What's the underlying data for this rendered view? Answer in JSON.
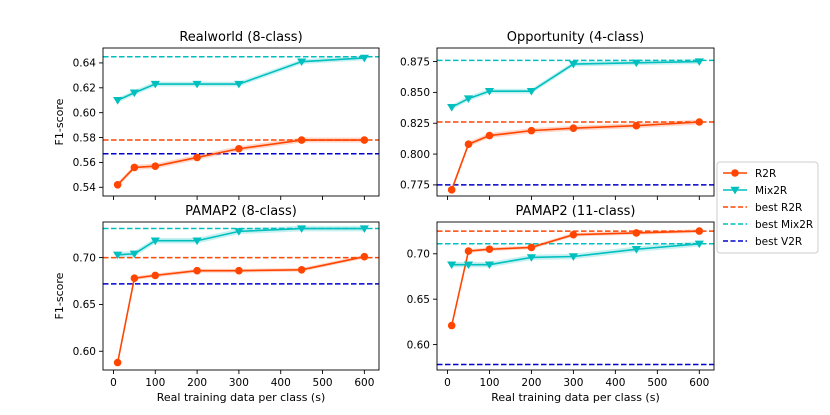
{
  "figure": {
    "xlabel": "Real training data per class (s)",
    "ylabel": "F1-score"
  },
  "colors": {
    "r2r": "#ff4500",
    "mix2r": "#00bfbf",
    "best_r2r": "#ff4500",
    "best_mix2r": "#00bfbf",
    "best_v2r": "#0000cd"
  },
  "legend": {
    "items": [
      {
        "key": "r2r",
        "label": "R2R",
        "style": "line-circle"
      },
      {
        "key": "mix2r",
        "label": "Mix2R",
        "style": "line-triangle"
      },
      {
        "key": "best_r2r",
        "label": "best R2R",
        "style": "dashed"
      },
      {
        "key": "best_mix2r",
        "label": "best Mix2R",
        "style": "dashed"
      },
      {
        "key": "best_v2r",
        "label": "best V2R",
        "style": "dashed"
      }
    ]
  },
  "chart_data": [
    {
      "type": "line",
      "title": "Realworld (8-class)",
      "x": [
        10,
        50,
        100,
        200,
        300,
        450,
        600
      ],
      "xlim": [
        -25,
        635
      ],
      "xticks": [
        0,
        100,
        200,
        300,
        400,
        500,
        600
      ],
      "show_xticklabels": false,
      "ylim": [
        0.533,
        0.652
      ],
      "yticks": [
        0.54,
        0.56,
        0.58,
        0.6,
        0.62,
        0.64
      ],
      "yticklabels": [
        "0.54",
        "0.56",
        "0.58",
        "0.60",
        "0.62",
        "0.64"
      ],
      "series": [
        {
          "name": "R2R",
          "key": "r2r",
          "values": [
            0.542,
            0.556,
            0.557,
            0.564,
            0.571,
            0.578,
            0.578
          ],
          "band": 0.002
        },
        {
          "name": "Mix2R",
          "key": "mix2r",
          "values": [
            0.61,
            0.616,
            0.623,
            0.623,
            0.623,
            0.641,
            0.644
          ],
          "band": 0.002
        }
      ],
      "baselines": [
        {
          "name": "best R2R",
          "key": "best_r2r",
          "value": 0.578
        },
        {
          "name": "best Mix2R",
          "key": "best_mix2r",
          "value": 0.645
        },
        {
          "name": "best V2R",
          "key": "best_v2r",
          "value": 0.567
        }
      ]
    },
    {
      "type": "line",
      "title": "Opportunity (4-class)",
      "x": [
        10,
        50,
        100,
        200,
        300,
        450,
        600
      ],
      "xlim": [
        -25,
        635
      ],
      "xticks": [
        0,
        100,
        200,
        300,
        400,
        500,
        600
      ],
      "show_xticklabels": false,
      "ylim": [
        0.766,
        0.886
      ],
      "yticks": [
        0.775,
        0.8,
        0.825,
        0.85,
        0.875
      ],
      "yticklabels": [
        "0.775",
        "0.800",
        "0.825",
        "0.850",
        "0.875"
      ],
      "series": [
        {
          "name": "R2R",
          "key": "r2r",
          "values": [
            0.771,
            0.808,
            0.815,
            0.819,
            0.821,
            0.823,
            0.826
          ],
          "band": 0.002
        },
        {
          "name": "Mix2R",
          "key": "mix2r",
          "values": [
            0.838,
            0.845,
            0.851,
            0.851,
            0.873,
            0.874,
            0.875
          ],
          "band": 0.002
        }
      ],
      "baselines": [
        {
          "name": "best R2R",
          "key": "best_r2r",
          "value": 0.826
        },
        {
          "name": "best Mix2R",
          "key": "best_mix2r",
          "value": 0.876
        },
        {
          "name": "best V2R",
          "key": "best_v2r",
          "value": 0.775
        }
      ]
    },
    {
      "type": "line",
      "title": "PAMAP2 (8-class)",
      "x": [
        10,
        50,
        100,
        200,
        300,
        450,
        600
      ],
      "xlim": [
        -25,
        635
      ],
      "xticks": [
        0,
        100,
        200,
        300,
        400,
        500,
        600
      ],
      "show_xticklabels": true,
      "ylim": [
        0.58,
        0.738
      ],
      "yticks": [
        0.6,
        0.65,
        0.7
      ],
      "yticklabels": [
        "0.60",
        "0.65",
        "0.70"
      ],
      "series": [
        {
          "name": "R2R",
          "key": "r2r",
          "values": [
            0.588,
            0.678,
            0.681,
            0.686,
            0.686,
            0.687,
            0.701
          ],
          "band": 0.002
        },
        {
          "name": "Mix2R",
          "key": "mix2r",
          "values": [
            0.703,
            0.704,
            0.718,
            0.718,
            0.728,
            0.731,
            0.731
          ],
          "band": 0.003
        }
      ],
      "baselines": [
        {
          "name": "best R2R",
          "key": "best_r2r",
          "value": 0.7
        },
        {
          "name": "best Mix2R",
          "key": "best_mix2r",
          "value": 0.731
        },
        {
          "name": "best V2R",
          "key": "best_v2r",
          "value": 0.672
        }
      ]
    },
    {
      "type": "line",
      "title": "PAMAP2 (11-class)",
      "x": [
        10,
        50,
        100,
        200,
        300,
        450,
        600
      ],
      "xlim": [
        -25,
        635
      ],
      "xticks": [
        0,
        100,
        200,
        300,
        400,
        500,
        600
      ],
      "show_xticklabels": true,
      "ylim": [
        0.572,
        0.735
      ],
      "yticks": [
        0.6,
        0.65,
        0.7
      ],
      "yticklabels": [
        "0.60",
        "0.65",
        "0.70"
      ],
      "series": [
        {
          "name": "R2R",
          "key": "r2r",
          "values": [
            0.621,
            0.703,
            0.705,
            0.707,
            0.721,
            0.723,
            0.725
          ],
          "band": 0.002
        },
        {
          "name": "Mix2R",
          "key": "mix2r",
          "values": [
            0.688,
            0.688,
            0.688,
            0.696,
            0.697,
            0.705,
            0.711
          ],
          "band": 0.003
        }
      ],
      "baselines": [
        {
          "name": "best R2R",
          "key": "best_r2r",
          "value": 0.725
        },
        {
          "name": "best Mix2R",
          "key": "best_mix2r",
          "value": 0.711
        },
        {
          "name": "best V2R",
          "key": "best_v2r",
          "value": 0.578
        }
      ]
    }
  ]
}
